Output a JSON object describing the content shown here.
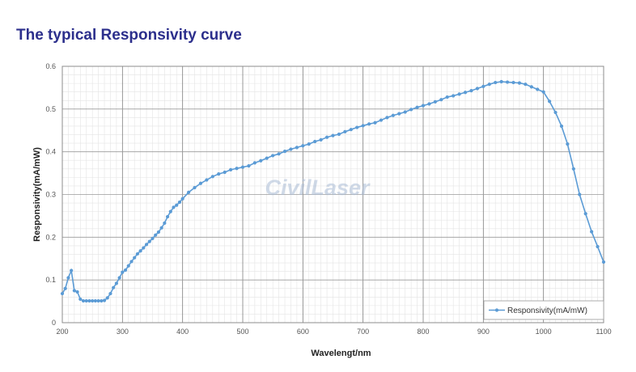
{
  "header": {
    "title": "The typical Responsivity curve"
  },
  "watermark": {
    "text": "CivilLaser"
  },
  "colors": {
    "series": "#5b9bd5",
    "title": "#2c2f8c"
  },
  "chart_data": {
    "type": "line",
    "title": "",
    "xlabel": "Wavelengt/nm",
    "ylabel": "Responsivity(mA/mW)",
    "xlim": [
      200,
      1100
    ],
    "ylim": [
      0,
      0.6
    ],
    "x_ticks": [
      200,
      300,
      400,
      500,
      600,
      700,
      800,
      900,
      1000,
      1100
    ],
    "y_ticks": [
      0,
      0.1,
      0.2,
      0.3,
      0.4,
      0.5,
      0.6
    ],
    "x_tick_labels": [
      "200",
      "300",
      "400",
      "500",
      "600",
      "700",
      "800",
      "900",
      "1000",
      "1100"
    ],
    "y_tick_labels": [
      "0",
      "0.1",
      "0.2",
      "0.3",
      "0.4",
      "0.5",
      "0.6"
    ],
    "grid": true,
    "legend_position": "bottom-right",
    "series": [
      {
        "name": "Responsivity(mA/mW)",
        "color": "#5b9bd5",
        "x": [
          200,
          205,
          210,
          215,
          220,
          225,
          230,
          235,
          240,
          245,
          250,
          255,
          260,
          265,
          270,
          275,
          280,
          285,
          290,
          295,
          300,
          305,
          310,
          315,
          320,
          325,
          330,
          335,
          340,
          345,
          350,
          355,
          360,
          365,
          370,
          375,
          380,
          385,
          390,
          395,
          400,
          410,
          420,
          430,
          440,
          450,
          460,
          470,
          480,
          490,
          500,
          510,
          520,
          530,
          540,
          550,
          560,
          570,
          580,
          590,
          600,
          610,
          620,
          630,
          640,
          650,
          660,
          670,
          680,
          690,
          700,
          710,
          720,
          730,
          740,
          750,
          760,
          770,
          780,
          790,
          800,
          810,
          820,
          830,
          840,
          850,
          860,
          870,
          880,
          890,
          900,
          910,
          920,
          930,
          940,
          950,
          960,
          970,
          980,
          990,
          1000,
          1010,
          1020,
          1030,
          1040,
          1050,
          1060,
          1070,
          1080,
          1090,
          1100
        ],
        "y": [
          0.068,
          0.08,
          0.105,
          0.122,
          0.075,
          0.072,
          0.055,
          0.051,
          0.051,
          0.051,
          0.051,
          0.051,
          0.051,
          0.051,
          0.052,
          0.058,
          0.068,
          0.082,
          0.092,
          0.105,
          0.118,
          0.123,
          0.133,
          0.143,
          0.152,
          0.161,
          0.168,
          0.175,
          0.183,
          0.19,
          0.197,
          0.205,
          0.212,
          0.222,
          0.233,
          0.248,
          0.26,
          0.27,
          0.275,
          0.282,
          0.29,
          0.305,
          0.316,
          0.326,
          0.334,
          0.342,
          0.348,
          0.352,
          0.358,
          0.361,
          0.364,
          0.367,
          0.374,
          0.379,
          0.385,
          0.391,
          0.395,
          0.401,
          0.406,
          0.41,
          0.414,
          0.418,
          0.424,
          0.428,
          0.434,
          0.438,
          0.441,
          0.447,
          0.452,
          0.457,
          0.461,
          0.465,
          0.468,
          0.474,
          0.48,
          0.485,
          0.489,
          0.493,
          0.499,
          0.504,
          0.508,
          0.512,
          0.517,
          0.522,
          0.528,
          0.531,
          0.535,
          0.539,
          0.543,
          0.548,
          0.553,
          0.558,
          0.562,
          0.564,
          0.563,
          0.562,
          0.561,
          0.558,
          0.552,
          0.546,
          0.54,
          0.518,
          0.492,
          0.46,
          0.418,
          0.36,
          0.3,
          0.255,
          0.213,
          0.178,
          0.142
        ]
      }
    ]
  }
}
